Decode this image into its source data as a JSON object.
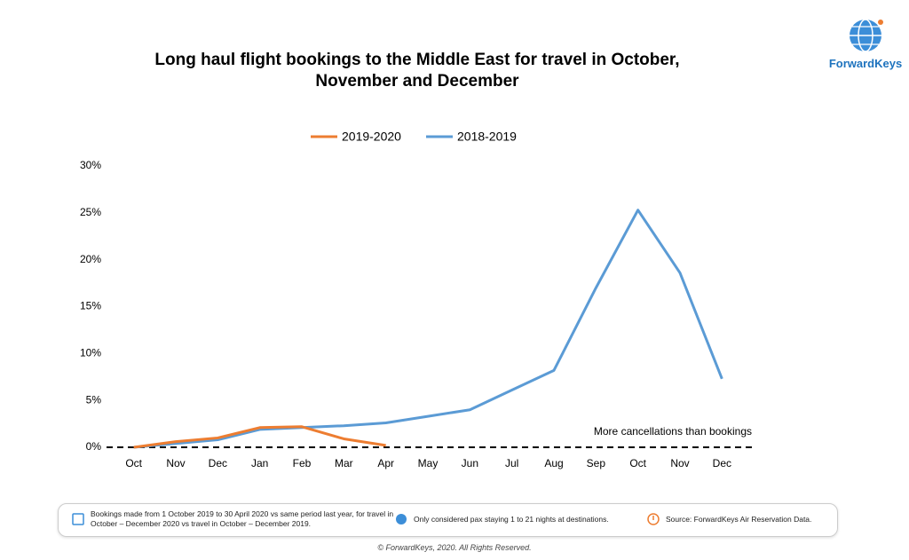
{
  "chart_data": {
    "type": "line",
    "title": "Long haul flight bookings to the Middle East for travel in October, November and December",
    "categories": [
      "Oct",
      "Nov",
      "Dec",
      "Jan",
      "Feb",
      "Mar",
      "Apr",
      "May",
      "Jun",
      "Jul",
      "Aug",
      "Sep",
      "Oct",
      "Nov",
      "Dec"
    ],
    "series": [
      {
        "name": "2019-2020",
        "color": "#ed7d31",
        "values": [
          0,
          0.6,
          1.0,
          2.1,
          2.2,
          0.9,
          0.2,
          null,
          null,
          null,
          null,
          null,
          null,
          null,
          null
        ]
      },
      {
        "name": "2018-2019",
        "color": "#5b9bd5",
        "values": [
          0,
          0.4,
          0.8,
          1.9,
          2.1,
          2.3,
          2.6,
          3.3,
          4.0,
          6.1,
          8.2,
          17.0,
          25.3,
          18.6,
          7.3
        ]
      }
    ],
    "ylim": [
      0,
      30
    ],
    "yticks": [
      {
        "value": 0,
        "label": "0%"
      },
      {
        "value": 5,
        "label": "5%"
      },
      {
        "value": 10,
        "label": "10%"
      },
      {
        "value": 15,
        "label": "15%"
      },
      {
        "value": 20,
        "label": "20%"
      },
      {
        "value": 25,
        "label": "25%"
      },
      {
        "value": 30,
        "label": "30%"
      }
    ],
    "legend": "top",
    "annotation": "More cancellations than bookings"
  },
  "logo": "ForwardKeys",
  "footer": {
    "notes": [
      "Bookings made from 1 October 2019 to 30 April 2020 vs same period last year, for travel in October – December 2020 vs travel in October – December 2019.",
      "Only considered pax staying 1 to 21 nights at destinations.",
      "Source: ForwardKeys Air Reservation Data."
    ],
    "copyright": "© ForwardKeys, 2020. All Rights Reserved."
  }
}
